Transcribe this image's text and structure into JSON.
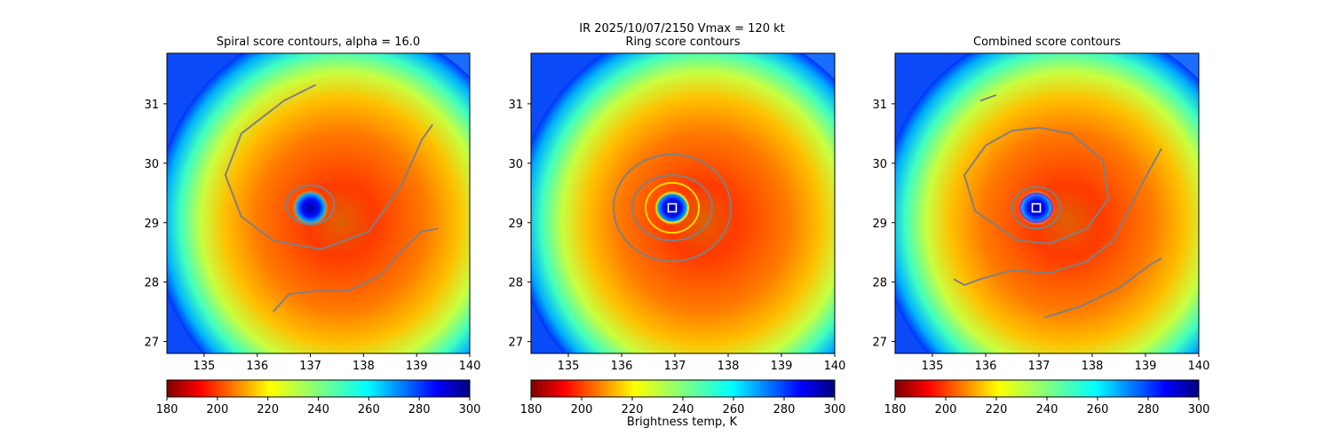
{
  "figure": {
    "suptitle_line1": "IR  2025/10/07/2150    Vmax = 120 kt",
    "colorbar_label": "Brightness temp, K"
  },
  "chart_data": [
    {
      "type": "heatmap",
      "title": "Spiral score contours, alpha = 16.0",
      "x_ticks": [
        "135",
        "136",
        "137",
        "138",
        "139",
        "140"
      ],
      "y_ticks": [
        "27",
        "28",
        "29",
        "30",
        "31"
      ],
      "xlim": [
        134.3,
        140.0
      ],
      "ylim": [
        26.8,
        31.85
      ],
      "colorbar": {
        "ticks": [
          "180",
          "200",
          "220",
          "240",
          "260",
          "280",
          "300"
        ],
        "range": [
          180,
          300
        ],
        "colormap": "jet_r"
      },
      "storm_center": {
        "lon": 137.0,
        "lat": 29.25
      },
      "contours": [
        {
          "color": "#808080",
          "points": [
            [
              137.1,
              31.32
            ],
            [
              136.5,
              31.05
            ],
            [
              135.7,
              30.5
            ],
            [
              135.4,
              29.8
            ],
            [
              135.7,
              29.1
            ],
            [
              136.3,
              28.7
            ],
            [
              137.2,
              28.55
            ],
            [
              138.1,
              28.85
            ],
            [
              138.7,
              29.6
            ],
            [
              139.1,
              30.4
            ],
            [
              139.3,
              30.65
            ]
          ]
        },
        {
          "color": "#808080",
          "points": [
            [
              136.3,
              27.5
            ],
            [
              136.6,
              27.8
            ],
            [
              137.1,
              27.85
            ],
            [
              137.7,
              27.85
            ],
            [
              138.3,
              28.1
            ],
            [
              138.8,
              28.6
            ],
            [
              139.1,
              28.85
            ],
            [
              139.4,
              28.9
            ]
          ]
        },
        {
          "color": "#808080",
          "closed": true,
          "center": [
            137.0,
            29.3
          ],
          "radius": [
            0.45,
            0.33
          ]
        }
      ]
    },
    {
      "type": "heatmap",
      "title": "Ring score contours",
      "x_ticks": [
        "135",
        "136",
        "137",
        "138",
        "139",
        "140"
      ],
      "y_ticks": [
        "27",
        "28",
        "29",
        "30",
        "31"
      ],
      "xlim": [
        134.3,
        140.0
      ],
      "ylim": [
        26.8,
        31.85
      ],
      "colorbar": {
        "ticks": [
          "180",
          "200",
          "220",
          "240",
          "260",
          "280",
          "300"
        ],
        "range": [
          180,
          300
        ],
        "colormap": "jet_r"
      },
      "storm_center": {
        "lon": 136.95,
        "lat": 29.25
      },
      "contours": [
        {
          "color": "#808080",
          "closed": true,
          "center": [
            136.95,
            29.25
          ],
          "radius": [
            1.1,
            0.9
          ]
        },
        {
          "color": "#808080",
          "closed": true,
          "center": [
            136.95,
            29.25
          ],
          "radius": [
            0.75,
            0.55
          ]
        },
        {
          "color": "#ffd700",
          "closed": true,
          "center": [
            136.95,
            29.25
          ],
          "radius": [
            0.5,
            0.42
          ]
        },
        {
          "color": "#ffd700",
          "closed": true,
          "center": [
            136.95,
            29.25
          ],
          "radius": [
            0.3,
            0.25
          ]
        }
      ]
    },
    {
      "type": "heatmap",
      "title": "Combined score contours",
      "x_ticks": [
        "135",
        "136",
        "137",
        "138",
        "139",
        "140"
      ],
      "y_ticks": [
        "27",
        "28",
        "29",
        "30",
        "31"
      ],
      "xlim": [
        134.3,
        140.0
      ],
      "ylim": [
        26.8,
        31.85
      ],
      "colorbar": {
        "ticks": [
          "180",
          "200",
          "220",
          "240",
          "260",
          "280",
          "300"
        ],
        "range": [
          180,
          300
        ],
        "colormap": "jet_r"
      },
      "storm_center": {
        "lon": 136.95,
        "lat": 29.25
      },
      "contours": [
        {
          "color": "#808080",
          "points": [
            [
              135.9,
              31.05
            ],
            [
              136.2,
              31.15
            ]
          ]
        },
        {
          "color": "#808080",
          "points": [
            [
              137.0,
              30.6
            ],
            [
              137.6,
              30.5
            ],
            [
              138.2,
              30.05
            ],
            [
              138.3,
              29.4
            ],
            [
              137.9,
              28.9
            ],
            [
              137.2,
              28.65
            ],
            [
              136.6,
              28.7
            ],
            [
              135.8,
              29.2
            ],
            [
              135.6,
              29.8
            ],
            [
              136.0,
              30.3
            ],
            [
              136.5,
              30.55
            ],
            [
              137.0,
              30.6
            ]
          ]
        },
        {
          "color": "#808080",
          "points": [
            [
              139.3,
              30.25
            ],
            [
              138.9,
              29.6
            ],
            [
              138.4,
              28.7
            ],
            [
              137.9,
              28.35
            ],
            [
              137.2,
              28.15
            ],
            [
              136.5,
              28.2
            ],
            [
              135.9,
              28.05
            ],
            [
              135.6,
              27.95
            ],
            [
              135.4,
              28.05
            ]
          ]
        },
        {
          "color": "#808080",
          "points": [
            [
              137.1,
              27.4
            ],
            [
              137.8,
              27.6
            ],
            [
              138.5,
              27.9
            ],
            [
              139.1,
              28.3
            ],
            [
              139.3,
              28.4
            ]
          ]
        },
        {
          "color": "#808080",
          "closed": true,
          "center": [
            136.95,
            29.25
          ],
          "radius": [
            0.45,
            0.35
          ]
        },
        {
          "color": "#9a2bd6",
          "closed": true,
          "center": [
            136.95,
            29.25
          ],
          "radius": [
            0.3,
            0.24
          ]
        },
        {
          "color": "#0a3cff",
          "closed": true,
          "center": [
            136.95,
            29.25
          ],
          "radius": [
            0.2,
            0.16
          ]
        }
      ]
    }
  ]
}
